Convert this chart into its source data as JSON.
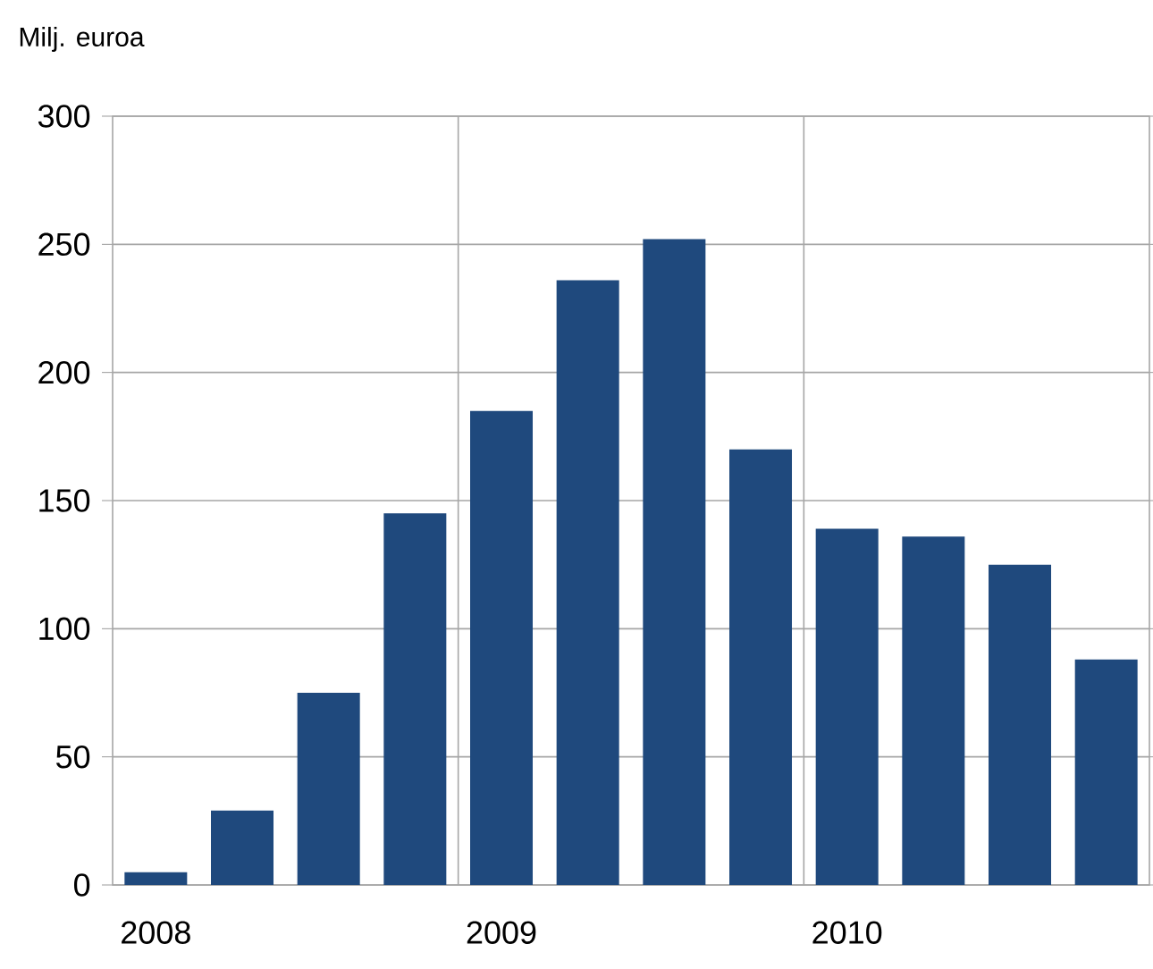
{
  "chart_data": {
    "type": "bar",
    "ylabel": "Milj. euroa",
    "categories": [
      "2008",
      null,
      null,
      null,
      "2009",
      null,
      null,
      null,
      "2010",
      null,
      null,
      null
    ],
    "values": [
      5,
      29,
      75,
      145,
      185,
      236,
      252,
      170,
      139,
      136,
      125,
      88
    ],
    "color": "#1f497d",
    "ylim": [
      0,
      300
    ],
    "yticks": [
      0,
      50,
      100,
      150,
      200,
      250,
      300
    ],
    "grid": true
  }
}
